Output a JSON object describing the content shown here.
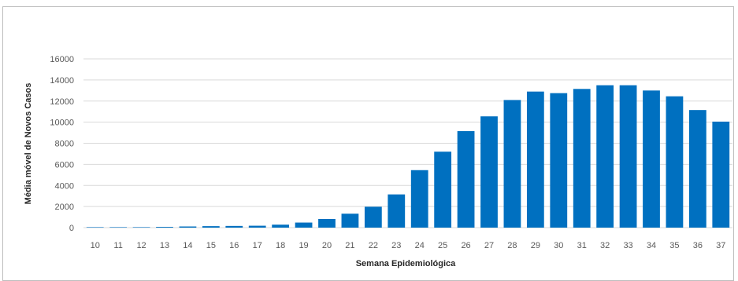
{
  "chart_data": {
    "type": "bar",
    "title": "",
    "xlabel": "Semana Epidemiológica",
    "ylabel": "Média móvel de Novos Casos",
    "ylim": [
      0,
      16000
    ],
    "yticks": [
      0,
      2000,
      4000,
      6000,
      8000,
      10000,
      12000,
      14000,
      16000
    ],
    "grid": true,
    "legend": "none",
    "bar_color": "#0070c0",
    "grid_color": "#d9d9d9",
    "categories": [
      "10",
      "11",
      "12",
      "13",
      "14",
      "15",
      "16",
      "17",
      "18",
      "19",
      "20",
      "21",
      "22",
      "23",
      "24",
      "25",
      "26",
      "27",
      "28",
      "29",
      "30",
      "31",
      "32",
      "33",
      "34",
      "35",
      "36",
      "37"
    ],
    "values": [
      5,
      10,
      30,
      70,
      110,
      140,
      160,
      180,
      280,
      480,
      820,
      1320,
      1980,
      3150,
      5450,
      7200,
      9150,
      10550,
      12100,
      12900,
      12750,
      13150,
      13500,
      13500,
      13000,
      12450,
      11150,
      10050
    ]
  }
}
